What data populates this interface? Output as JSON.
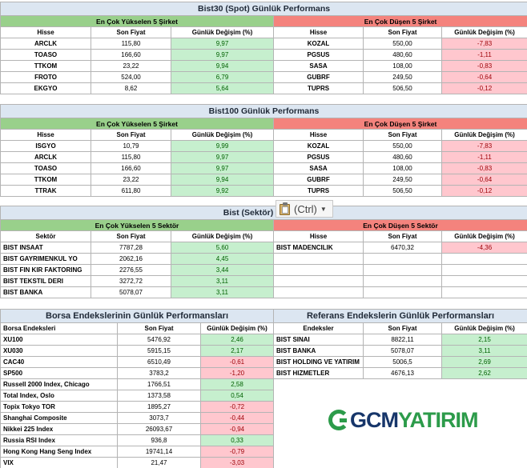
{
  "bist30": {
    "title": "Bist30 (Spot) Günlük Performans",
    "up_title": "En Çok Yükselen 5 Şirket",
    "down_title": "En Çok Düşen 5 Şirket",
    "col_hisse": "Hisse",
    "col_fiyat": "Son Fiyat",
    "col_degisim": "Günlük Değişim (%)",
    "up_rows": [
      {
        "name": "ARCLK",
        "price": "115,80",
        "change": "9,97"
      },
      {
        "name": "TOASO",
        "price": "166,60",
        "change": "9,97"
      },
      {
        "name": "TTKOM",
        "price": "23,22",
        "change": "9,94"
      },
      {
        "name": "FROTO",
        "price": "524,00",
        "change": "6,79"
      },
      {
        "name": "EKGYO",
        "price": "8,62",
        "change": "5,64"
      }
    ],
    "down_rows": [
      {
        "name": "KOZAL",
        "price": "550,00",
        "change": "-7,83"
      },
      {
        "name": "PGSUS",
        "price": "480,60",
        "change": "-1,11"
      },
      {
        "name": "SASA",
        "price": "108,00",
        "change": "-0,83"
      },
      {
        "name": "GUBRF",
        "price": "249,50",
        "change": "-0,64"
      },
      {
        "name": "TUPRS",
        "price": "506,50",
        "change": "-0,12"
      }
    ]
  },
  "bist100": {
    "title": "Bist100 Günlük Performans",
    "up_title": "En Çok Yükselen 5 Şirket",
    "down_title": "En Çok Düşen 5 Şirket",
    "col_hisse": "Hisse",
    "col_fiyat": "Son Fiyat",
    "col_degisim": "Günlük Değişim (%)",
    "up_rows": [
      {
        "name": "ISGYO",
        "price": "10,79",
        "change": "9,99"
      },
      {
        "name": "ARCLK",
        "price": "115,80",
        "change": "9,97"
      },
      {
        "name": "TOASO",
        "price": "166,60",
        "change": "9,97"
      },
      {
        "name": "TTKOM",
        "price": "23,22",
        "change": "9,94"
      },
      {
        "name": "TTRAK",
        "price": "611,80",
        "change": "9,92"
      }
    ],
    "down_rows": [
      {
        "name": "KOZAL",
        "price": "550,00",
        "change": "-7,83"
      },
      {
        "name": "PGSUS",
        "price": "480,60",
        "change": "-1,11"
      },
      {
        "name": "SASA",
        "price": "108,00",
        "change": "-0,83"
      },
      {
        "name": "GUBRF",
        "price": "249,50",
        "change": "-0,64"
      },
      {
        "name": "TUPRS",
        "price": "506,50",
        "change": "-0,12"
      }
    ]
  },
  "sector": {
    "title": "Bist (Sektör) Günlük",
    "up_title": "En Çok Yükselen 5 Sektör",
    "down_title": "En Çok Düşen 5 Sektör",
    "col_sektor": "Sektör",
    "col_hisse": "Hisse",
    "col_fiyat": "Son Fiyat",
    "col_degisim": "Günlük Değişim (%)",
    "up_rows": [
      {
        "name": "BIST INSAAT",
        "price": "7787,28",
        "change": "5,60"
      },
      {
        "name": "BIST GAYRIMENKUL YO",
        "price": "2062,16",
        "change": "4,45"
      },
      {
        "name": "BIST FIN KIR FAKTORING",
        "price": "2276,55",
        "change": "3,44"
      },
      {
        "name": "BIST TEKSTIL DERI",
        "price": "3272,72",
        "change": "3,11"
      },
      {
        "name": "BIST BANKA",
        "price": "5078,07",
        "change": "3,11"
      }
    ],
    "down_rows": [
      {
        "name": "BIST MADENCILIK",
        "price": "6470,32",
        "change": "-4,36"
      }
    ]
  },
  "paste_popup": {
    "label": "(Ctrl)",
    "icon": "clipboard-icon"
  },
  "borsa": {
    "title": "Borsa Endekslerinin Günlük Performansları",
    "col_name": "Borsa Endeksleri",
    "col_fiyat": "Son Fiyat",
    "col_degisim": "Günlük Değişim (%)",
    "rows": [
      {
        "name": "XU100",
        "price": "5476,92",
        "change": "2,46"
      },
      {
        "name": "XU030",
        "price": "5915,15",
        "change": "2,17"
      },
      {
        "name": "CAC40",
        "price": "6510,49",
        "change": "-0,61"
      },
      {
        "name": "SP500",
        "price": "3783,2",
        "change": "-1,20"
      },
      {
        "name": "Russell 2000 Index, Chicago",
        "price": "1766,51",
        "change": "2,58"
      },
      {
        "name": "Total Index, Oslo",
        "price": "1373,58",
        "change": "0,54"
      },
      {
        "name": "Topix Tokyo TOR",
        "price": "1895,27",
        "change": "-0,72"
      },
      {
        "name": "Shanghai Composite",
        "price": "3073,7",
        "change": "-0,44"
      },
      {
        "name": "Nikkei 225 Index",
        "price": "26093,67",
        "change": "-0,94"
      },
      {
        "name": "Russia RSI Index",
        "price": "936,8",
        "change": "0,33"
      },
      {
        "name": "Hong Kong Hang Seng Index",
        "price": "19741,14",
        "change": "-0,79"
      },
      {
        "name": "VIX",
        "price": "21,47",
        "change": "-3,03"
      }
    ]
  },
  "referans": {
    "title": "Referans Endekslerin  Günlük Performansları",
    "col_name": "Endeksler",
    "col_fiyat": "Son Fiyat",
    "col_degisim": "Günlük Değişim (%)",
    "rows": [
      {
        "name": "BIST SINAI",
        "price": "8822,11",
        "change": "2,15"
      },
      {
        "name": "BIST BANKA",
        "price": "5078,07",
        "change": "3,11"
      },
      {
        "name": "BIST HOLDING VE YATIRIM",
        "price": "5006,5",
        "change": "2,69"
      },
      {
        "name": "BIST HIZMETLER",
        "price": "4676,13",
        "change": "2,62"
      }
    ]
  },
  "logo": {
    "part1": "GCM",
    "part2": "YATIRIM"
  },
  "colors": {
    "up_header": "#99d08b",
    "down_header": "#f4837d",
    "positive_fill": "#c6efce",
    "negative_fill": "#ffc7ce",
    "title_fill": "#dce6f1",
    "brand_green": "#2c9b4a",
    "brand_blue": "#17366a"
  }
}
